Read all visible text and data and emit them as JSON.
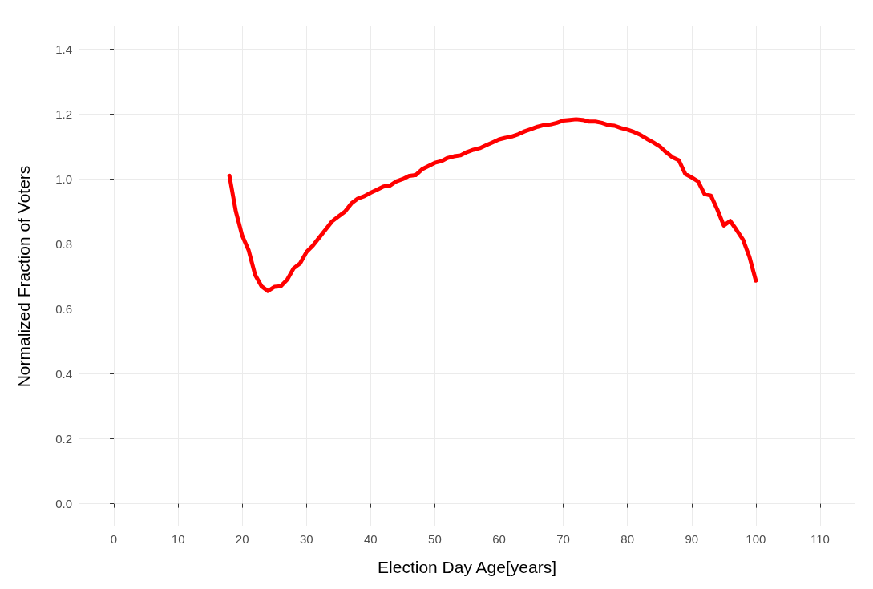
{
  "chart_data": {
    "type": "line",
    "xlabel": "Election Day Age[years]",
    "ylabel": "Normalized Fraction of Voters",
    "xlim": [
      -5.5,
      115.5
    ],
    "xticks": [
      0,
      10,
      20,
      30,
      40,
      50,
      60,
      70,
      80,
      90,
      100,
      110
    ],
    "ylim": [
      -0.07,
      1.47
    ],
    "yticks": [
      {
        "value": 0,
        "label": "0.0"
      },
      0.2,
      0.4,
      0.6,
      0.8,
      {
        "value": 1,
        "label": "1.0"
      },
      1.2,
      1.4
    ],
    "grid": true,
    "marker": "none",
    "line_style": "solid",
    "series": [
      {
        "color": "#ff0000",
        "x": [
          18,
          19,
          20,
          21,
          22,
          23,
          24,
          25,
          26,
          27,
          28,
          29,
          30,
          31,
          32,
          33,
          34,
          35,
          36,
          37,
          38,
          39,
          40,
          41,
          42,
          43,
          44,
          45,
          46,
          47,
          48,
          49,
          50,
          51,
          52,
          53,
          54,
          55,
          56,
          57,
          58,
          59,
          60,
          61,
          62,
          63,
          64,
          65,
          66,
          67,
          68,
          69,
          70,
          71,
          72,
          73,
          74,
          75,
          76,
          77,
          78,
          79,
          80,
          81,
          82,
          83,
          84,
          85,
          86,
          87,
          88,
          89,
          90,
          91,
          92,
          93,
          94,
          95,
          96,
          97,
          98,
          99,
          100
        ],
        "values": [
          1.01,
          0.9,
          0.825,
          0.78,
          0.705,
          0.67,
          0.655,
          0.668,
          0.67,
          0.69,
          0.725,
          0.74,
          0.775,
          0.795,
          0.82,
          0.845,
          0.87,
          0.885,
          0.9,
          0.925,
          0.94,
          0.947,
          0.958,
          0.967,
          0.977,
          0.98,
          0.993,
          1.0,
          1.01,
          1.012,
          1.03,
          1.04,
          1.05,
          1.055,
          1.065,
          1.07,
          1.073,
          1.083,
          1.09,
          1.095,
          1.104,
          1.113,
          1.122,
          1.127,
          1.131,
          1.138,
          1.147,
          1.154,
          1.161,
          1.166,
          1.168,
          1.173,
          1.18,
          1.182,
          1.184,
          1.182,
          1.177,
          1.177,
          1.173,
          1.166,
          1.164,
          1.157,
          1.152,
          1.145,
          1.136,
          1.124,
          1.113,
          1.101,
          1.083,
          1.067,
          1.058,
          1.016,
          1.005,
          0.993,
          0.954,
          0.949,
          0.906,
          0.857,
          0.871,
          0.843,
          0.813,
          0.76,
          0.687
        ]
      }
    ]
  }
}
